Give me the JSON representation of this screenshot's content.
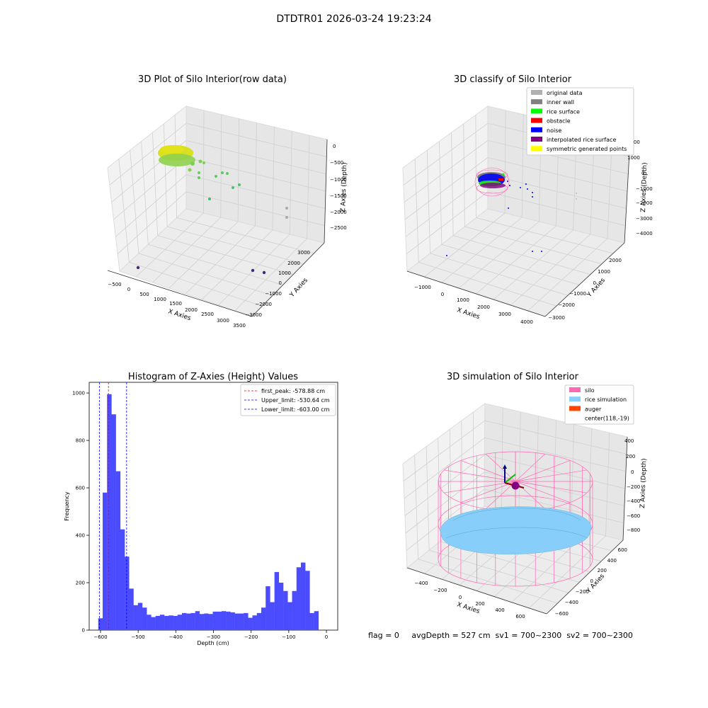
{
  "figure": {
    "suptitle": "DTDTR01 2026-03-24 19:23:24",
    "status_text": "flag = 0     avgDepth = 527 cm  sv1 = 700~2300  sv2 = 700~2300"
  },
  "colors": {
    "hist_bar": "#4c4cff",
    "first_peak": "#ff0000",
    "limit": "#0000ff",
    "silo": "#ff69b4",
    "rice": "#87cefa",
    "auger": "#ff4500",
    "grey": "#b0b0b0",
    "inner_wall": "#808080",
    "rice_surface": "#00ff00",
    "obstacle": "#ff0000",
    "noise": "#0000ff",
    "interpolated": "#800080",
    "symmetric": "#ffff00"
  },
  "plot1": {
    "title": "3D Plot of Silo Interior(row data)",
    "xlabel": "X Axies",
    "ylabel": "Y Axies",
    "zlabel": "Z Axies (Depth)",
    "xticks": [
      "−500",
      "0",
      "500",
      "1000",
      "1500",
      "2000",
      "2500",
      "3000",
      "3500"
    ],
    "yticks": [
      "3000",
      "2000",
      "1000",
      "0",
      "−1000",
      "−2000",
      "−3000"
    ],
    "zticks": [
      "0",
      "−500",
      "−1000",
      "−1500",
      "−2000",
      "−2500"
    ]
  },
  "plot2": {
    "title": "3D classify of Silo Interior",
    "xlabel": "X Axies",
    "ylabel": "Y Axies",
    "zlabel": "Z Axies (Depth)",
    "xticks": [
      "−1000",
      "0",
      "1000",
      "2000",
      "3000",
      "4000"
    ],
    "yticks": [
      "2000",
      "1000",
      "0",
      "−1000",
      "−2000",
      "−3000"
    ],
    "zticks": [
      "2000",
      "1000",
      "0",
      "−1000",
      "−2000",
      "−3000",
      "−4000"
    ],
    "legend": [
      {
        "label": "original data",
        "color": "#b0b0b0"
      },
      {
        "label": "inner wall",
        "color": "#808080"
      },
      {
        "label": "rice surface",
        "color": "#00ff00"
      },
      {
        "label": "obstacle",
        "color": "#ff0000"
      },
      {
        "label": "noise",
        "color": "#0000ff"
      },
      {
        "label": "interpolated rice surface",
        "color": "#800080"
      },
      {
        "label": "symmetric generated points",
        "color": "#ffff00"
      }
    ]
  },
  "plot4": {
    "title": "3D simulation of Silo Interior",
    "xlabel": "X Axies",
    "ylabel": "Y Axies",
    "zlabel": "Z Axies (Depth)",
    "xticks": [
      "−400",
      "−200",
      "0",
      "200",
      "400",
      "600"
    ],
    "yticks": [
      "600",
      "400",
      "200",
      "0",
      "−200",
      "−400",
      "−600"
    ],
    "zticks": [
      "400",
      "200",
      "0",
      "−200",
      "−400",
      "−600",
      "−800"
    ],
    "legend": [
      {
        "label": "silo",
        "color": "#ff69b4"
      },
      {
        "label": "rice simulation",
        "color": "#87cefa"
      },
      {
        "label": "auger",
        "color": "#ff4500"
      },
      {
        "label": "center(118,-19)",
        "color": ""
      }
    ]
  },
  "chart_data": {
    "type": "bar",
    "title": "Histogram of Z-Axies (Height) Values",
    "xlabel": "Depth (cm)",
    "ylabel": "Frequency",
    "xlim": [
      -630,
      30
    ],
    "ylim": [
      0,
      1045
    ],
    "xticks": [
      -600,
      -500,
      -400,
      -300,
      -200,
      -100,
      0
    ],
    "yticks": [
      0,
      200,
      400,
      600,
      800,
      1000
    ],
    "bin_start": -606,
    "bin_width": 11.7,
    "values": [
      50,
      580,
      995,
      910,
      670,
      425,
      310,
      175,
      105,
      115,
      95,
      65,
      55,
      60,
      65,
      60,
      62,
      60,
      65,
      72,
      70,
      72,
      80,
      68,
      70,
      68,
      78,
      78,
      80,
      78,
      75,
      70,
      70,
      72,
      52,
      62,
      72,
      95,
      185,
      118,
      245,
      200,
      165,
      118,
      165,
      265,
      285,
      250,
      72,
      80
    ],
    "grid": false,
    "legend_position": "top-right",
    "lines": [
      {
        "label": "first_peak: -578.88 cm",
        "x": -578.88,
        "color": "#ff0000"
      },
      {
        "label": "Upper_limit: -530.64 cm",
        "x": -530.64,
        "color": "#0000ff"
      },
      {
        "label": "Lower_limit: -603.00 cm",
        "x": -603.0,
        "color": "#0000ff"
      }
    ]
  }
}
